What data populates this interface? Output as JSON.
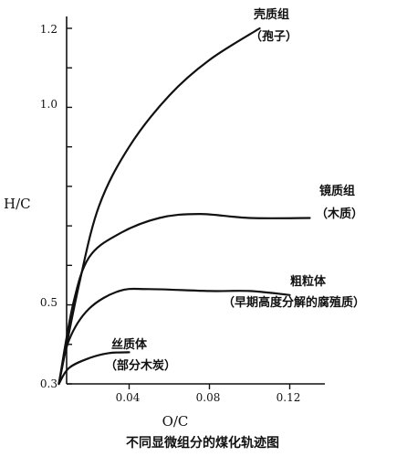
{
  "chart_data": {
    "type": "line",
    "title": "不同显微组分的煤化轨迹图",
    "xlabel": "O/C",
    "ylabel": "H/C",
    "xlim": [
      0.0,
      0.13
    ],
    "ylim": [
      0.3,
      1.2
    ],
    "x_tick_labels": [
      "0.04",
      "0.08",
      "0.12"
    ],
    "y_tick_labels": [
      "0.3",
      "0.5",
      "1.0",
      "1.2"
    ],
    "series": [
      {
        "label_line1": "壳质组",
        "label_line2": "（孢子）",
        "x": [
          0.005,
          0.015,
          0.025,
          0.04,
          0.06,
          0.08,
          0.105
        ],
        "y": [
          0.3,
          0.55,
          0.75,
          0.9,
          1.03,
          1.12,
          1.2
        ]
      },
      {
        "label_line1": "镜质组",
        "label_line2": "（木质）",
        "x": [
          0.005,
          0.012,
          0.02,
          0.035,
          0.055,
          0.075,
          0.1,
          0.13
        ],
        "y": [
          0.3,
          0.5,
          0.62,
          0.68,
          0.72,
          0.73,
          0.72,
          0.72
        ]
      },
      {
        "label_line1": "粗粒体",
        "label_line2": "（早期高度分解的腐殖质）",
        "x": [
          0.005,
          0.01,
          0.02,
          0.035,
          0.05,
          0.08,
          0.1,
          0.12
        ],
        "y": [
          0.3,
          0.41,
          0.49,
          0.535,
          0.54,
          0.535,
          0.535,
          0.525
        ]
      },
      {
        "label_line1": "丝质体",
        "label_line2": "（部分木炭）",
        "x": [
          0.005,
          0.01,
          0.02,
          0.03,
          0.04
        ],
        "y": [
          0.3,
          0.34,
          0.365,
          0.378,
          0.38
        ]
      }
    ]
  }
}
